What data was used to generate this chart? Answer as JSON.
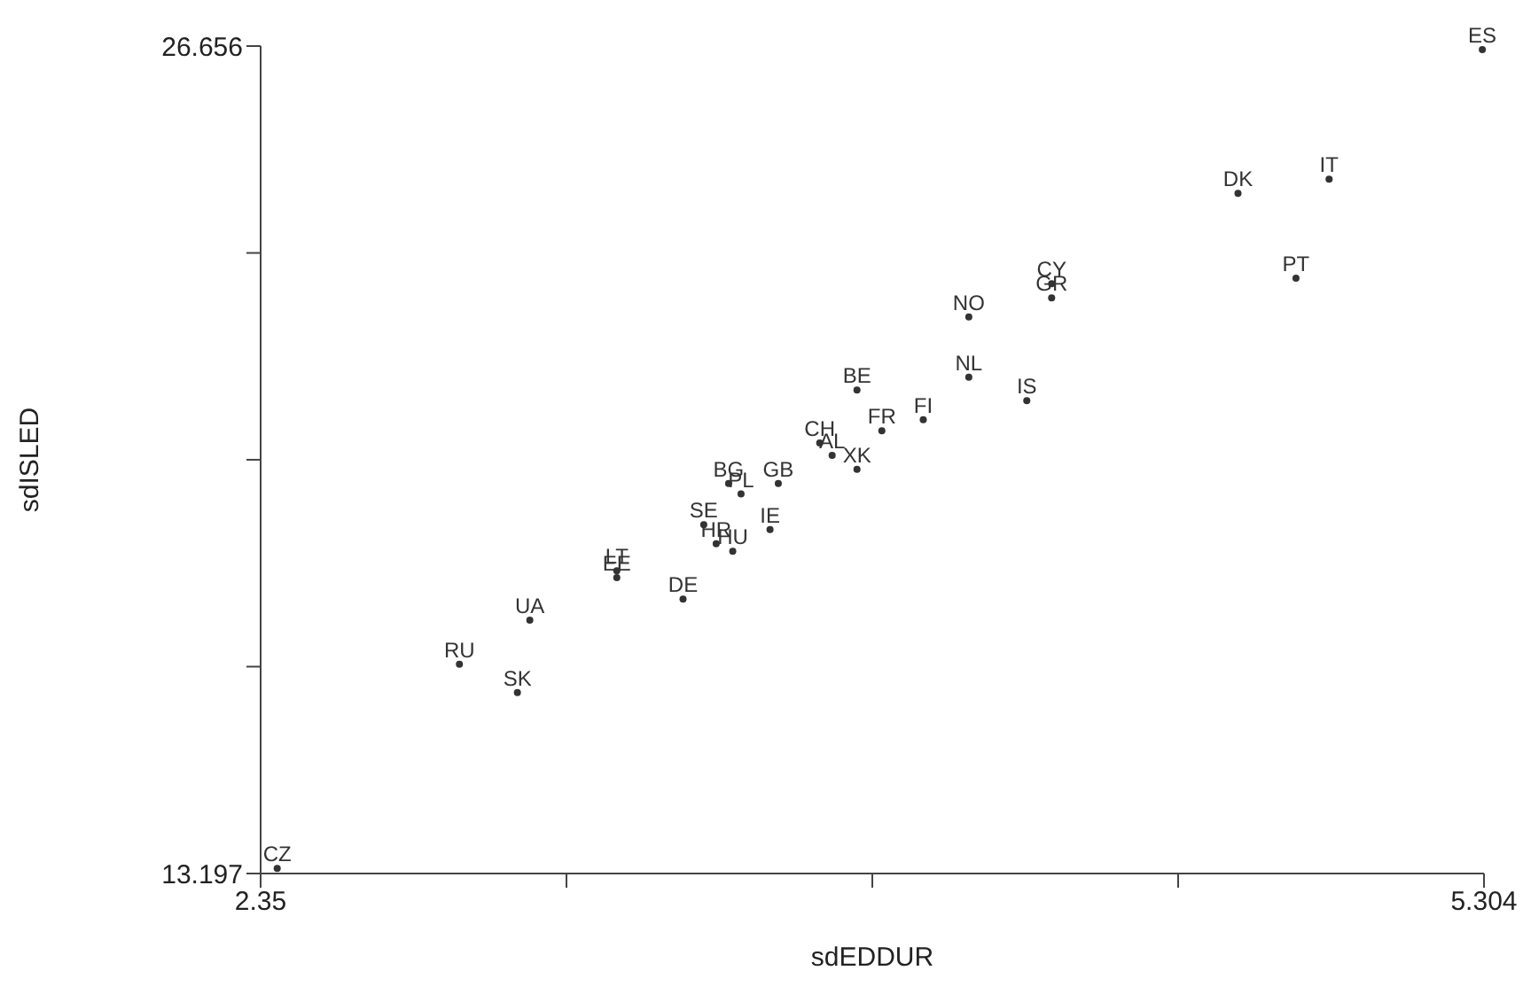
{
  "chart_data": {
    "type": "scatter",
    "xlabel": "sdEDDUR",
    "ylabel": "sdISLED",
    "xlim": [
      2.35,
      5.304
    ],
    "ylim": [
      13.197,
      26.656
    ],
    "xticks": [
      2.35,
      {
        "value": 3.0885,
        "label": null
      },
      {
        "value": 3.827,
        "label": null
      },
      {
        "value": 4.5655,
        "label": null
      },
      5.304
    ],
    "yticks": [
      13.197,
      {
        "value": 16.562,
        "label": null
      },
      {
        "value": 19.927,
        "label": null
      },
      {
        "value": 23.291,
        "label": null
      },
      26.656
    ],
    "grid": false,
    "marker": "circle",
    "legend": false,
    "series": [
      {
        "color": "#333333",
        "x": [
          2.39,
          5.3,
          4.93,
          4.71,
          4.85,
          4.26,
          4.26,
          4.06,
          4.06,
          4.2,
          3.79,
          3.95,
          3.85,
          3.7,
          3.73,
          3.79,
          3.48,
          3.51,
          3.6,
          3.42,
          3.45,
          3.49,
          3.58,
          3.21,
          3.21,
          3.37,
          3.0,
          2.83,
          2.97
        ],
        "values": [
          13.28,
          26.6,
          24.49,
          24.26,
          22.88,
          22.79,
          22.56,
          22.25,
          21.27,
          20.89,
          21.06,
          20.58,
          20.4,
          20.2,
          20.0,
          19.77,
          19.54,
          19.37,
          19.54,
          18.87,
          18.56,
          18.44,
          18.79,
          18.12,
          18.01,
          17.66,
          17.32,
          16.6,
          16.14
        ],
        "value_labels": [
          "CZ",
          "ES",
          "IT",
          "DK",
          "PT",
          "CY",
          "GR",
          "NO",
          "NL",
          "IS",
          "BE",
          "FI",
          "FR",
          "CH",
          "AL",
          "XK",
          "BG",
          "PL",
          "GB",
          "SE",
          "HR",
          "HU",
          "IE",
          "LT",
          "EE",
          "DE",
          "UA",
          "RU",
          "SK"
        ]
      }
    ]
  }
}
